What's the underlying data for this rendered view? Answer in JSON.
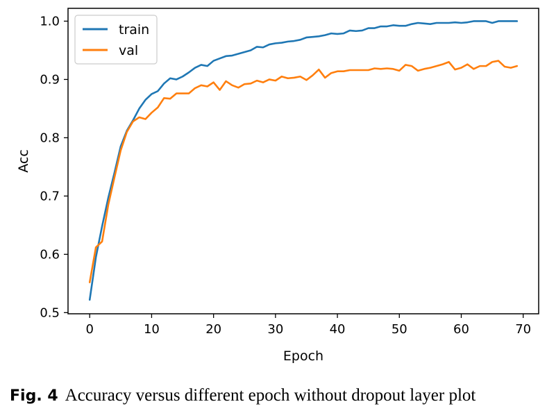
{
  "chart_data": {
    "type": "line",
    "xlabel": "Epoch",
    "ylabel": "Acc",
    "xlim": [
      -3.5,
      72.5
    ],
    "ylim": [
      0.498,
      1.022
    ],
    "xticks": [
      0,
      10,
      20,
      30,
      40,
      50,
      60,
      70
    ],
    "yticks": [
      0.5,
      0.6,
      0.7,
      0.8,
      0.9,
      1.0
    ],
    "ytick_labels": [
      "0.5",
      "0.6",
      "0.7",
      "0.8",
      "0.9",
      "1.0"
    ],
    "grid": false,
    "legend_position": "top-left",
    "series": [
      {
        "name": "train",
        "color": "#1f77b4",
        "x": [
          0,
          1,
          2,
          3,
          4,
          5,
          6,
          7,
          8,
          9,
          10,
          11,
          12,
          13,
          14,
          15,
          16,
          17,
          18,
          19,
          20,
          21,
          22,
          23,
          24,
          25,
          26,
          27,
          28,
          29,
          30,
          31,
          32,
          33,
          34,
          35,
          36,
          37,
          38,
          39,
          40,
          41,
          42,
          43,
          44,
          45,
          46,
          47,
          48,
          49,
          50,
          51,
          52,
          53,
          54,
          55,
          56,
          57,
          58,
          59,
          60,
          61,
          62,
          63,
          64,
          65,
          66,
          67,
          68,
          69
        ],
        "values": [
          0.522,
          0.595,
          0.648,
          0.697,
          0.74,
          0.785,
          0.812,
          0.83,
          0.85,
          0.865,
          0.875,
          0.88,
          0.893,
          0.902,
          0.9,
          0.905,
          0.912,
          0.92,
          0.925,
          0.923,
          0.932,
          0.936,
          0.94,
          0.941,
          0.944,
          0.947,
          0.95,
          0.956,
          0.955,
          0.96,
          0.962,
          0.963,
          0.965,
          0.966,
          0.968,
          0.972,
          0.973,
          0.974,
          0.976,
          0.979,
          0.978,
          0.979,
          0.984,
          0.983,
          0.984,
          0.988,
          0.988,
          0.991,
          0.991,
          0.993,
          0.992,
          0.992,
          0.995,
          0.997,
          0.996,
          0.995,
          0.997,
          0.997,
          0.997,
          0.998,
          0.997,
          0.998,
          1.0,
          1.0,
          1.0,
          0.997,
          1.0,
          1.0,
          1.0,
          1.0
        ]
      },
      {
        "name": "val",
        "color": "#ff7f0e",
        "x": [
          0,
          1,
          2,
          3,
          4,
          5,
          6,
          7,
          8,
          9,
          10,
          11,
          12,
          13,
          14,
          15,
          16,
          17,
          18,
          19,
          20,
          21,
          22,
          23,
          24,
          25,
          26,
          27,
          28,
          29,
          30,
          31,
          32,
          33,
          34,
          35,
          36,
          37,
          38,
          39,
          40,
          41,
          42,
          43,
          44,
          45,
          46,
          47,
          48,
          49,
          50,
          51,
          52,
          53,
          54,
          55,
          56,
          57,
          58,
          59,
          60,
          61,
          62,
          63,
          64,
          65,
          66,
          67,
          68,
          69
        ],
        "values": [
          0.552,
          0.612,
          0.622,
          0.685,
          0.732,
          0.778,
          0.81,
          0.828,
          0.835,
          0.832,
          0.843,
          0.852,
          0.868,
          0.867,
          0.876,
          0.876,
          0.876,
          0.885,
          0.89,
          0.888,
          0.895,
          0.882,
          0.897,
          0.89,
          0.886,
          0.892,
          0.893,
          0.898,
          0.895,
          0.9,
          0.898,
          0.905,
          0.902,
          0.903,
          0.905,
          0.899,
          0.907,
          0.917,
          0.903,
          0.911,
          0.914,
          0.914,
          0.916,
          0.916,
          0.916,
          0.916,
          0.919,
          0.918,
          0.919,
          0.918,
          0.915,
          0.925,
          0.923,
          0.915,
          0.918,
          0.92,
          0.923,
          0.926,
          0.93,
          0.917,
          0.92,
          0.926,
          0.918,
          0.923,
          0.923,
          0.93,
          0.932,
          0.922,
          0.92,
          0.923
        ]
      }
    ]
  },
  "caption": {
    "label": "Fig. 4",
    "text": "Accuracy versus different epoch without dropout layer plot"
  }
}
